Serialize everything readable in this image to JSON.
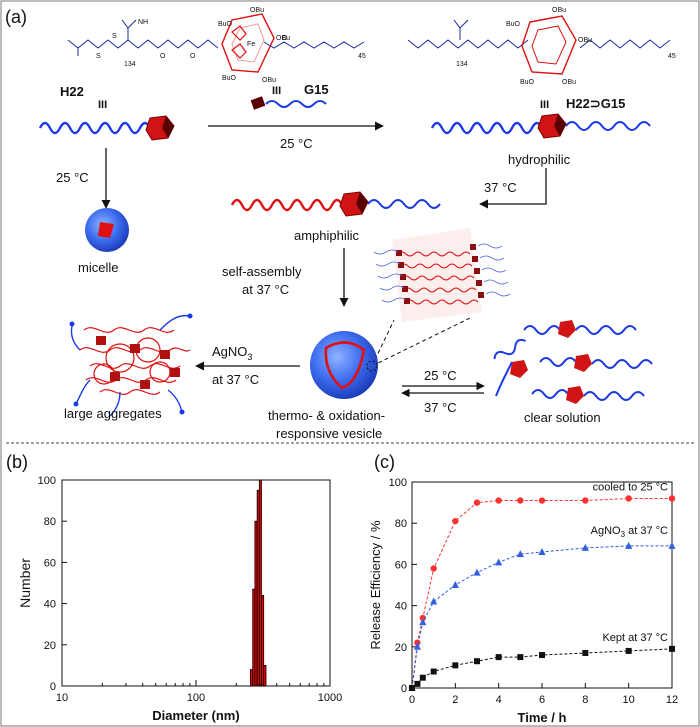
{
  "panel_a": {
    "label": "(a)",
    "host_name": "H22",
    "guest_name": "G15",
    "complex_name": "H22⊃G15",
    "bond_mark": "III",
    "guest_bond_mark": "III",
    "complex_bond_mark": "III",
    "host_chem": {
      "s1": "S",
      "s2": "S",
      "n": "N",
      "nh": "NH",
      "o1": "O",
      "o2": "O",
      "sub": "134"
    },
    "guest_chem": {
      "fe": "Fe",
      "sub": "45",
      "o": "O"
    },
    "complex_chem": {
      "sub1": "134",
      "sub2": "45"
    },
    "obu": "OBu",
    "buo": "BuO",
    "temp_25_top": "25 °C",
    "temp_25_left": "25 °C",
    "temp_37_right": "37 °C",
    "hydrophilic": "hydrophilic",
    "amphiphilic": "amphiphilic",
    "micelle": "micelle",
    "self_assembly_1": "self-assembly",
    "self_assembly_2": "at 37 °C",
    "agno3_label": "AgNO",
    "agno3_sub": "3",
    "agno3_temp": "at 37 °C",
    "large_aggregates": "large aggregates",
    "vesicle_1": "thermo- & oxidation-",
    "vesicle_2": "responsive vesicle",
    "eq_25": "25 °C",
    "eq_37": "37 °C",
    "clear_solution": "clear solution"
  },
  "panel_b_label": "(b)",
  "panel_c_label": "(c)",
  "chart_data": [
    {
      "type": "bar",
      "title": "",
      "xlabel": "Diameter (nm)",
      "ylabel": "Number",
      "xscale": "log",
      "xlim": [
        10,
        1000
      ],
      "ylim": [
        0,
        100
      ],
      "xticks": [
        "10",
        "100",
        "1000"
      ],
      "yticks": [
        "0",
        "20",
        "40",
        "60",
        "80",
        "100"
      ],
      "bins": [
        {
          "x0": 255,
          "x1": 265,
          "value": 8
        },
        {
          "x0": 265,
          "x1": 275,
          "value": 47
        },
        {
          "x0": 275,
          "x1": 286,
          "value": 80
        },
        {
          "x0": 286,
          "x1": 297,
          "value": 95
        },
        {
          "x0": 297,
          "x1": 308,
          "value": 100
        },
        {
          "x0": 308,
          "x1": 320,
          "value": 44
        },
        {
          "x0": 320,
          "x1": 333,
          "value": 10
        }
      ],
      "color": "#e00000"
    },
    {
      "type": "line",
      "title": "",
      "xlabel": "Time / h",
      "ylabel": "Release Efficiency / %",
      "xlim": [
        0,
        12
      ],
      "ylim": [
        0,
        100
      ],
      "xticks": [
        "0",
        "2",
        "4",
        "6",
        "8",
        "10",
        "12"
      ],
      "yticks": [
        "0",
        "20",
        "40",
        "60",
        "80",
        "100"
      ],
      "series": [
        {
          "name": "cooled to 25 °C",
          "color": "#ff3030",
          "marker": "circle",
          "x": [
            0,
            0.25,
            0.5,
            1,
            2,
            3,
            4,
            5,
            6,
            8,
            10,
            12
          ],
          "y": [
            0,
            22,
            34,
            58,
            81,
            90,
            91,
            91,
            91,
            91,
            92,
            92
          ]
        },
        {
          "name": "AgNO3 at 37 °C",
          "legend_main": "AgNO",
          "legend_sub": "3",
          "legend_rest": " at 37 °C",
          "color": "#3060e0",
          "marker": "triangle",
          "x": [
            0,
            0.25,
            0.5,
            1,
            2,
            3,
            4,
            5,
            6,
            8,
            10,
            12
          ],
          "y": [
            0,
            20,
            32,
            42,
            50,
            56,
            61,
            65,
            66,
            68,
            69,
            69
          ]
        },
        {
          "name": "Kept at 37 °C",
          "color": "#111111",
          "marker": "square",
          "x": [
            0,
            0.25,
            0.5,
            1,
            2,
            3,
            4,
            5,
            6,
            8,
            10,
            12
          ],
          "y": [
            0,
            2,
            5,
            8,
            11,
            13,
            15,
            15,
            16,
            17,
            18,
            19
          ]
        }
      ]
    }
  ]
}
